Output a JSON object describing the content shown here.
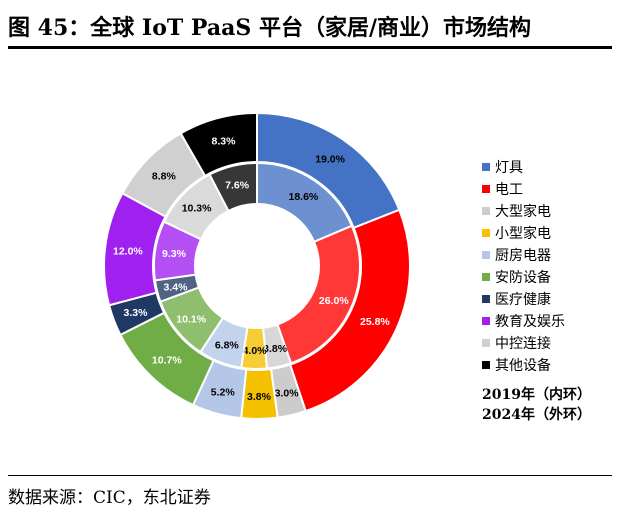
{
  "figure": {
    "title": "图  45：全球 IoT PaaS 平台（家居/商业）市场结构",
    "source": "数据来源：CIC，东北证券"
  },
  "chart_data": {
    "type": "donut",
    "categories": [
      "灯具",
      "电工",
      "大型家电",
      "小型家电",
      "厨房电器",
      "安防设备",
      "医疗健康",
      "教育及娱乐",
      "中控连接",
      "其他设备"
    ],
    "colors": [
      "#4472C4",
      "#FF0000",
      "#CCCCCC",
      "#F5C000",
      "#B4C7E7",
      "#70AD47",
      "#203864",
      "#A020F0",
      "#D0D0D0",
      "#000000"
    ],
    "series": [
      {
        "name": "2019年（内环）",
        "values": [
          18.6,
          26.0,
          3.8,
          4.0,
          6.8,
          10.1,
          3.4,
          9.3,
          10.3,
          7.6
        ]
      },
      {
        "name": "2024年（外环）",
        "values": [
          19.0,
          25.8,
          3.0,
          3.8,
          5.2,
          10.7,
          3.3,
          12.0,
          8.8,
          8.3
        ]
      }
    ],
    "value_labels": {
      "inner": [
        "18.6%",
        "26.0%",
        "3.8%",
        "4.0%",
        "6.8%",
        "10.1%",
        "3.4%",
        "9.3%",
        "10.3%",
        "7.6%"
      ],
      "outer": [
        "19.0%",
        "25.8%",
        "3.0%",
        "3.8%",
        "5.2%",
        "10.7%",
        "3.3%",
        "12.0%",
        "8.8%",
        "8.3%"
      ]
    },
    "legend_position": "right"
  }
}
